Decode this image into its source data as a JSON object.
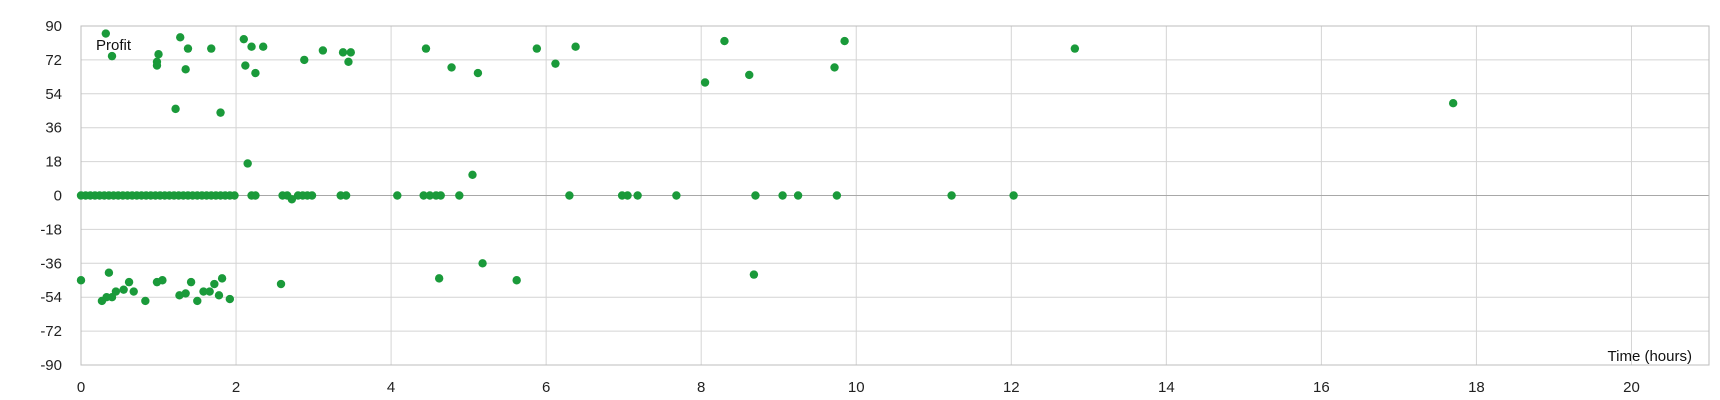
{
  "chart_data": {
    "type": "scatter",
    "xlabel": "Time (hours)",
    "ylabel": "Profit",
    "xlim": [
      0,
      21
    ],
    "ylim": [
      -90,
      90
    ],
    "x_ticks": [
      0,
      2,
      4,
      6,
      8,
      10,
      12,
      14,
      16,
      18,
      20
    ],
    "y_ticks": [
      -90,
      -72,
      -54,
      -36,
      -18,
      0,
      18,
      36,
      54,
      72,
      90
    ],
    "grid": true,
    "colors": {
      "point": "#1a9a3a",
      "grid": "#d4d4d4",
      "zero_line": "#a8a8a8",
      "frame": "#bdbdbd"
    },
    "series": [
      {
        "points": [
          [
            0.0,
            -45
          ],
          [
            0.27,
            -56
          ],
          [
            0.33,
            -54
          ],
          [
            0.36,
            -41
          ],
          [
            0.4,
            -54
          ],
          [
            0.45,
            -51
          ],
          [
            0.55,
            -50
          ],
          [
            0.62,
            -46
          ],
          [
            0.68,
            -51
          ],
          [
            0.83,
            -56
          ],
          [
            0.98,
            -46
          ],
          [
            1.05,
            -45
          ],
          [
            1.27,
            -53
          ],
          [
            1.35,
            -52
          ],
          [
            1.42,
            -46
          ],
          [
            1.5,
            -56
          ],
          [
            1.58,
            -51
          ],
          [
            1.66,
            -51
          ],
          [
            1.72,
            -47
          ],
          [
            1.78,
            -53
          ],
          [
            1.82,
            -44
          ],
          [
            1.92,
            -55
          ],
          [
            2.58,
            -47
          ],
          [
            4.62,
            -44
          ],
          [
            5.18,
            -36
          ],
          [
            5.62,
            -45
          ],
          [
            8.68,
            -42
          ],
          [
            0.32,
            86
          ],
          [
            0.4,
            74
          ],
          [
            0.98,
            69
          ],
          [
            0.98,
            71
          ],
          [
            1.0,
            75
          ],
          [
            1.22,
            46
          ],
          [
            1.28,
            84
          ],
          [
            1.35,
            67
          ],
          [
            1.38,
            78
          ],
          [
            1.68,
            78
          ],
          [
            1.8,
            44
          ],
          [
            2.1,
            83
          ],
          [
            2.12,
            69
          ],
          [
            2.2,
            79
          ],
          [
            2.25,
            65
          ],
          [
            2.35,
            79
          ],
          [
            2.88,
            72
          ],
          [
            3.12,
            77
          ],
          [
            3.38,
            76
          ],
          [
            3.45,
            71
          ],
          [
            3.48,
            76
          ],
          [
            4.45,
            78
          ],
          [
            4.78,
            68
          ],
          [
            5.12,
            65
          ],
          [
            5.88,
            78
          ],
          [
            6.12,
            70
          ],
          [
            6.38,
            79
          ],
          [
            8.05,
            60
          ],
          [
            8.3,
            82
          ],
          [
            8.62,
            64
          ],
          [
            9.72,
            68
          ],
          [
            9.85,
            82
          ],
          [
            12.82,
            78
          ],
          [
            17.7,
            49
          ],
          [
            2.15,
            17
          ],
          [
            5.05,
            11
          ],
          [
            2.72,
            -2
          ],
          [
            0.0,
            0
          ],
          [
            0.06,
            0
          ],
          [
            0.12,
            0
          ],
          [
            0.18,
            0
          ],
          [
            0.24,
            0
          ],
          [
            0.3,
            0
          ],
          [
            0.36,
            0
          ],
          [
            0.42,
            0
          ],
          [
            0.48,
            0
          ],
          [
            0.54,
            0
          ],
          [
            0.6,
            0
          ],
          [
            0.66,
            0
          ],
          [
            0.72,
            0
          ],
          [
            0.78,
            0
          ],
          [
            0.84,
            0
          ],
          [
            0.9,
            0
          ],
          [
            0.96,
            0
          ],
          [
            1.02,
            0
          ],
          [
            1.08,
            0
          ],
          [
            1.14,
            0
          ],
          [
            1.2,
            0
          ],
          [
            1.26,
            0
          ],
          [
            1.32,
            0
          ],
          [
            1.38,
            0
          ],
          [
            1.44,
            0
          ],
          [
            1.5,
            0
          ],
          [
            1.56,
            0
          ],
          [
            1.62,
            0
          ],
          [
            1.68,
            0
          ],
          [
            1.74,
            0
          ],
          [
            1.8,
            0
          ],
          [
            1.86,
            0
          ],
          [
            1.92,
            0
          ],
          [
            1.98,
            0
          ],
          [
            2.2,
            0
          ],
          [
            2.25,
            0
          ],
          [
            2.6,
            0
          ],
          [
            2.66,
            0
          ],
          [
            2.8,
            0
          ],
          [
            2.86,
            0
          ],
          [
            2.92,
            0
          ],
          [
            2.98,
            0
          ],
          [
            3.35,
            0
          ],
          [
            3.42,
            0
          ],
          [
            4.08,
            0
          ],
          [
            4.42,
            0
          ],
          [
            4.5,
            0
          ],
          [
            4.58,
            0
          ],
          [
            4.64,
            0
          ],
          [
            4.88,
            0
          ],
          [
            6.3,
            0
          ],
          [
            6.98,
            0
          ],
          [
            7.05,
            0
          ],
          [
            7.18,
            0
          ],
          [
            7.68,
            0
          ],
          [
            8.7,
            0
          ],
          [
            9.05,
            0
          ],
          [
            9.25,
            0
          ],
          [
            9.75,
            0
          ],
          [
            11.23,
            0
          ],
          [
            12.03,
            0
          ]
        ]
      }
    ]
  }
}
